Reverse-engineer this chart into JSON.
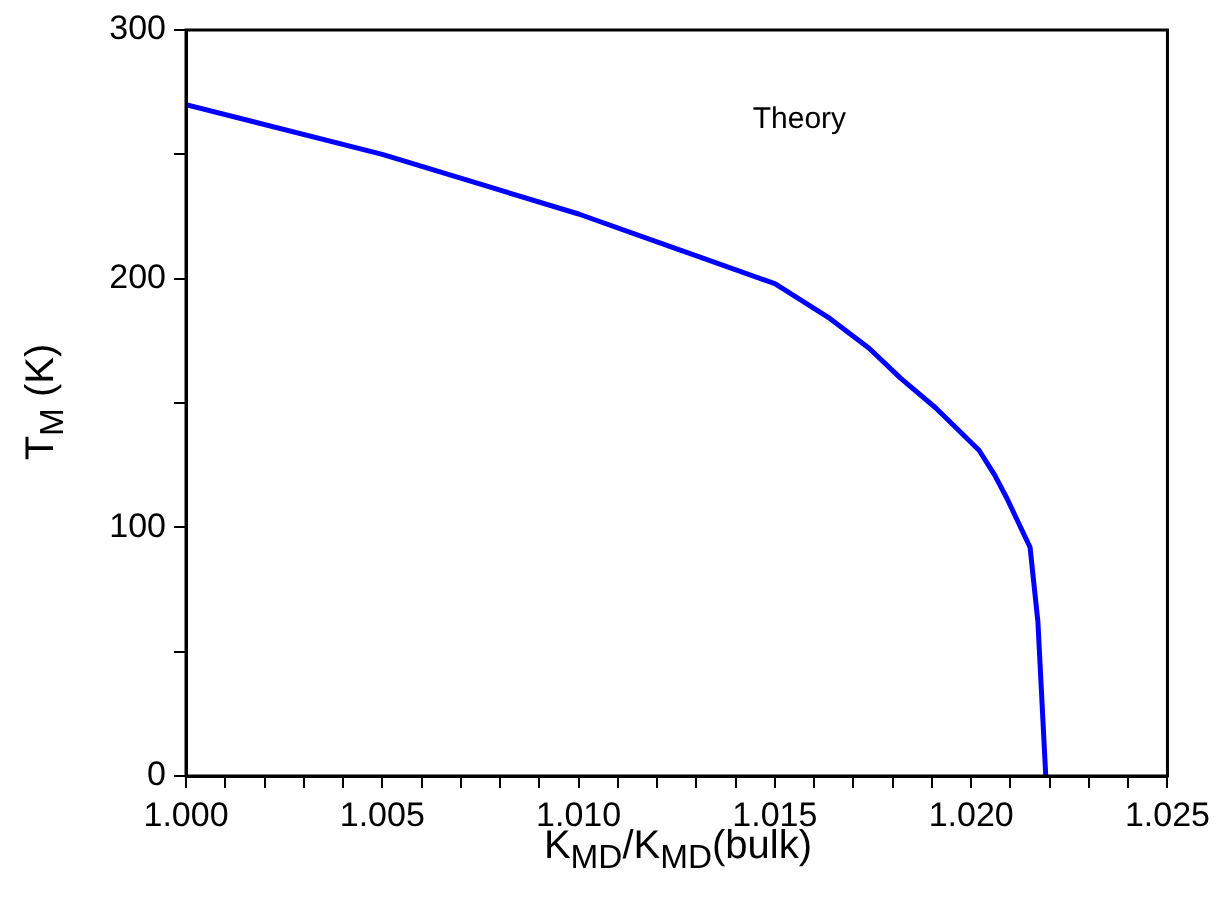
{
  "chart_data": {
    "type": "line",
    "xlabel": "K$_{MD}$/K$_{MD}$(bulk)",
    "ylabel": "T$_{M}$ (K)",
    "annotations": [
      "Theory"
    ],
    "x": [
      1.0,
      1.005,
      1.0075,
      1.01,
      1.0125,
      1.015,
      1.0164,
      1.0174,
      1.0182,
      1.0191,
      1.0202,
      1.0206,
      1.0209,
      1.0215,
      1.0217,
      1.0219
    ],
    "series": [
      {
        "color": "#0000ff",
        "values": [
          270,
          250,
          238,
          226,
          212,
          198,
          184,
          172,
          160,
          148,
          131,
          121,
          112,
          92,
          62,
          0
        ]
      }
    ],
    "xlim": [
      1.0,
      1.025
    ],
    "xticks": [
      {
        "value": 1.0,
        "label": "1.000"
      },
      {
        "value": 1.001,
        "label": null
      },
      {
        "value": 1.002,
        "label": null
      },
      {
        "value": 1.003,
        "label": null
      },
      {
        "value": 1.004,
        "label": null
      },
      {
        "value": 1.005,
        "label": "1.005"
      },
      {
        "value": 1.006,
        "label": null
      },
      {
        "value": 1.007,
        "label": null
      },
      {
        "value": 1.008,
        "label": null
      },
      {
        "value": 1.009,
        "label": null
      },
      {
        "value": 1.01,
        "label": "1.010"
      },
      {
        "value": 1.011,
        "label": null
      },
      {
        "value": 1.012,
        "label": null
      },
      {
        "value": 1.013,
        "label": null
      },
      {
        "value": 1.014,
        "label": null
      },
      {
        "value": 1.015,
        "label": "1.015"
      },
      {
        "value": 1.016,
        "label": null
      },
      {
        "value": 1.017,
        "label": null
      },
      {
        "value": 1.018,
        "label": null
      },
      {
        "value": 1.019,
        "label": null
      },
      {
        "value": 1.02,
        "label": "1.020"
      },
      {
        "value": 1.021,
        "label": null
      },
      {
        "value": 1.022,
        "label": null
      },
      {
        "value": 1.023,
        "label": null
      },
      {
        "value": 1.024,
        "label": null
      },
      {
        "value": 1.025,
        "label": "1.025"
      }
    ],
    "ylim": [
      0,
      300
    ],
    "yticks": [
      0,
      {
        "value": 50,
        "label": null
      },
      100,
      {
        "value": 150,
        "label": null
      },
      200,
      {
        "value": 250,
        "label": null
      },
      300
    ],
    "grid": false,
    "legend": false,
    "marker": "none",
    "line_style": "solid"
  }
}
